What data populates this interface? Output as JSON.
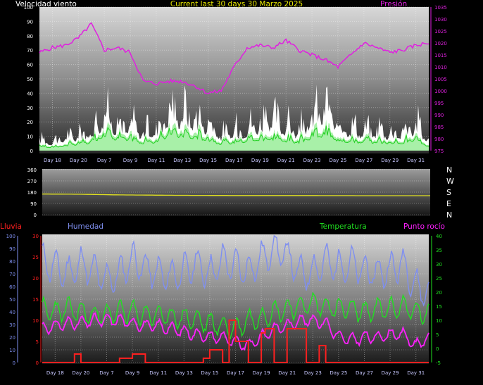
{
  "header": {
    "wind_label": "Velocidad viento",
    "title": "Current last 30 days 30 Marzo 2025",
    "pressure_label": "Presión"
  },
  "colors": {
    "wind_gust": "#ffffff",
    "wind_avg": "#a8f0a8",
    "wind_avg_line": "#20d020",
    "pressure": "#e020e0",
    "direction": "#e0e020",
    "rain": "#ff2020",
    "humidity": "#7f8ff0",
    "temperature": "#20e020",
    "dewpoint": "#ff20ff",
    "day_labels": "#c8c8ff"
  },
  "compass": [
    "N",
    "W",
    "S",
    "E",
    "N"
  ],
  "chart_data": [
    {
      "type": "area",
      "id": "wind_pressure",
      "x_tick_labels": [
        "Day 18",
        "Day 20",
        "Day 7",
        "Day 9",
        "Day 11",
        "Day 13",
        "Day 15",
        "Day 17",
        "Day 19",
        "Day 21",
        "Day 23",
        "Day 25",
        "Day 27",
        "Day 29",
        "Day 31"
      ],
      "left_axis": {
        "label": "Velocidad viento",
        "ticks": [
          "0",
          "10",
          "20",
          "30",
          "40",
          "50",
          "60",
          "70",
          "80",
          "90",
          "100"
        ],
        "ylim": [
          0,
          100
        ]
      },
      "right_axis": {
        "label": "Presión",
        "ticks": [
          "975",
          "980",
          "985",
          "990",
          "995",
          "1000",
          "1005",
          "1010",
          "1015",
          "1020",
          "1025",
          "1030",
          "1035"
        ],
        "ylim": [
          975,
          1035
        ]
      },
      "series": [
        {
          "values_key": "gust",
          "x": [
            0,
            1,
            2,
            3,
            4,
            5,
            6,
            7,
            8,
            9,
            10,
            11,
            12,
            13,
            14,
            15,
            16,
            17,
            18,
            19,
            20,
            21,
            22,
            23,
            24,
            25,
            26,
            27,
            28,
            29,
            30
          ],
          "values": [
            12,
            10,
            15,
            18,
            22,
            40,
            28,
            30,
            20,
            25,
            45,
            42,
            38,
            30,
            18,
            22,
            25,
            32,
            35,
            28,
            22,
            38,
            50,
            30,
            26,
            22,
            24,
            20,
            22,
            30,
            12
          ]
        },
        {
          "values_key": "avg",
          "x": [
            0,
            1,
            2,
            3,
            4,
            5,
            6,
            7,
            8,
            9,
            10,
            11,
            12,
            13,
            14,
            15,
            16,
            17,
            18,
            19,
            20,
            21,
            22,
            23,
            24,
            25,
            26,
            27,
            28,
            29,
            30
          ],
          "values": [
            5,
            4,
            6,
            8,
            10,
            20,
            14,
            14,
            9,
            11,
            20,
            18,
            16,
            14,
            8,
            10,
            12,
            14,
            15,
            12,
            10,
            16,
            20,
            13,
            11,
            10,
            11,
            9,
            10,
            13,
            5
          ]
        },
        {
          "values_key": "pressure",
          "x": [
            0,
            1,
            2,
            3,
            4,
            5,
            6,
            7,
            8,
            9,
            10,
            11,
            12,
            13,
            14,
            15,
            16,
            17,
            18,
            19,
            20,
            21,
            22,
            23,
            24,
            25,
            26,
            27,
            28,
            29,
            30
          ],
          "values": [
            1016,
            1018,
            1019,
            1022,
            1028,
            1017,
            1018,
            1016,
            1004,
            1003,
            1004,
            1004,
            1002,
            999,
            1000,
            1010,
            1018,
            1019,
            1018,
            1021,
            1017,
            1015,
            1013,
            1010,
            1015,
            1020,
            1018,
            1016,
            1017,
            1019,
            1020
          ]
        }
      ]
    },
    {
      "type": "line",
      "id": "wind_direction",
      "left_axis": {
        "ticks": [
          "0",
          "90",
          "180",
          "270",
          "360"
        ],
        "ylim": [
          0,
          360
        ]
      },
      "series": [
        {
          "values_key": "direction",
          "x": [
            0,
            3,
            6,
            10,
            15,
            20,
            25,
            30
          ],
          "values": [
            165,
            163,
            158,
            155,
            153,
            153,
            152,
            152
          ]
        }
      ]
    },
    {
      "type": "line",
      "id": "rain_humidity_temp",
      "x_tick_labels": [
        "Day 18",
        "Day 20",
        "Day 7",
        "Day 9",
        "Day 11",
        "Day 13",
        "Day 15",
        "Day 17",
        "Day 19",
        "Day 21",
        "Day 23",
        "Day 25",
        "Day 27",
        "Day 29",
        "Day 31"
      ],
      "humidity_axis": {
        "label": "Humedad",
        "ticks": [
          "0",
          "10",
          "20",
          "30",
          "40",
          "50",
          "60",
          "70",
          "80",
          "90",
          "100"
        ],
        "ylim": [
          0,
          100
        ]
      },
      "rain_axis": {
        "label": "Lluvia",
        "ticks": [
          "0",
          "5",
          "10",
          "15",
          "20",
          "25",
          "30"
        ],
        "ylim": [
          0,
          30
        ]
      },
      "temp_axis": {
        "label": "Temperatura",
        "ticks": [
          "-5",
          "0",
          "5",
          "10",
          "15",
          "20",
          "25",
          "30",
          "35",
          "40"
        ],
        "ylim": [
          -5,
          40
        ]
      },
      "dewpoint_label": "Punto rocío",
      "series": [
        {
          "values_key": "humidity",
          "x": [
            0,
            1,
            2,
            3,
            4,
            5,
            6,
            7,
            8,
            9,
            10,
            11,
            12,
            13,
            14,
            15,
            16,
            17,
            18,
            19,
            20,
            21,
            22,
            23,
            24,
            25,
            26,
            27,
            28,
            29,
            30
          ],
          "values": [
            80,
            75,
            70,
            78,
            72,
            65,
            70,
            82,
            74,
            70,
            68,
            72,
            78,
            70,
            80,
            76,
            72,
            82,
            90,
            85,
            70,
            72,
            80,
            75,
            78,
            72,
            70,
            74,
            78,
            60,
            55
          ]
        },
        {
          "values_key": "temperature",
          "x": [
            0,
            1,
            2,
            3,
            4,
            5,
            6,
            7,
            8,
            9,
            10,
            11,
            12,
            13,
            14,
            15,
            16,
            17,
            18,
            19,
            20,
            21,
            22,
            23,
            24,
            25,
            26,
            27,
            28,
            29,
            30
          ],
          "values": [
            14,
            13,
            14,
            13,
            12,
            12,
            13,
            13,
            12,
            12,
            11,
            11,
            10,
            9,
            8,
            7,
            10,
            11,
            13,
            14,
            15,
            16,
            15,
            14,
            14,
            13,
            14,
            14,
            15,
            13,
            12
          ]
        },
        {
          "values_key": "dewpoint",
          "x": [
            0,
            1,
            2,
            3,
            4,
            5,
            6,
            7,
            8,
            9,
            10,
            11,
            12,
            13,
            14,
            15,
            16,
            17,
            18,
            19,
            20,
            21,
            22,
            23,
            24,
            25,
            26,
            27,
            28,
            29,
            30
          ],
          "values": [
            7,
            8,
            9,
            9,
            10,
            10,
            10,
            9,
            8,
            8,
            7,
            6,
            5,
            4,
            4,
            2,
            1,
            4,
            7,
            8,
            10,
            10,
            9,
            4,
            3,
            4,
            4,
            5,
            5,
            1,
            4
          ]
        },
        {
          "values_key": "rain",
          "x": [
            0,
            2,
            2.5,
            3,
            4,
            5,
            6,
            7,
            8,
            9,
            10,
            11,
            11.7,
            12,
            12.5,
            13,
            14,
            14.5,
            15,
            16,
            16.3,
            17,
            17.3,
            18,
            18.6,
            19,
            20,
            20.5,
            21,
            21.5,
            22,
            26,
            30
          ],
          "values": [
            0,
            0,
            2,
            0,
            0,
            0,
            1,
            2,
            0,
            0,
            0,
            0,
            0,
            0,
            1,
            3,
            0,
            10,
            5,
            0,
            0,
            7,
            8,
            0,
            0,
            8,
            8,
            0,
            0,
            4,
            0,
            0,
            0
          ]
        }
      ]
    }
  ]
}
